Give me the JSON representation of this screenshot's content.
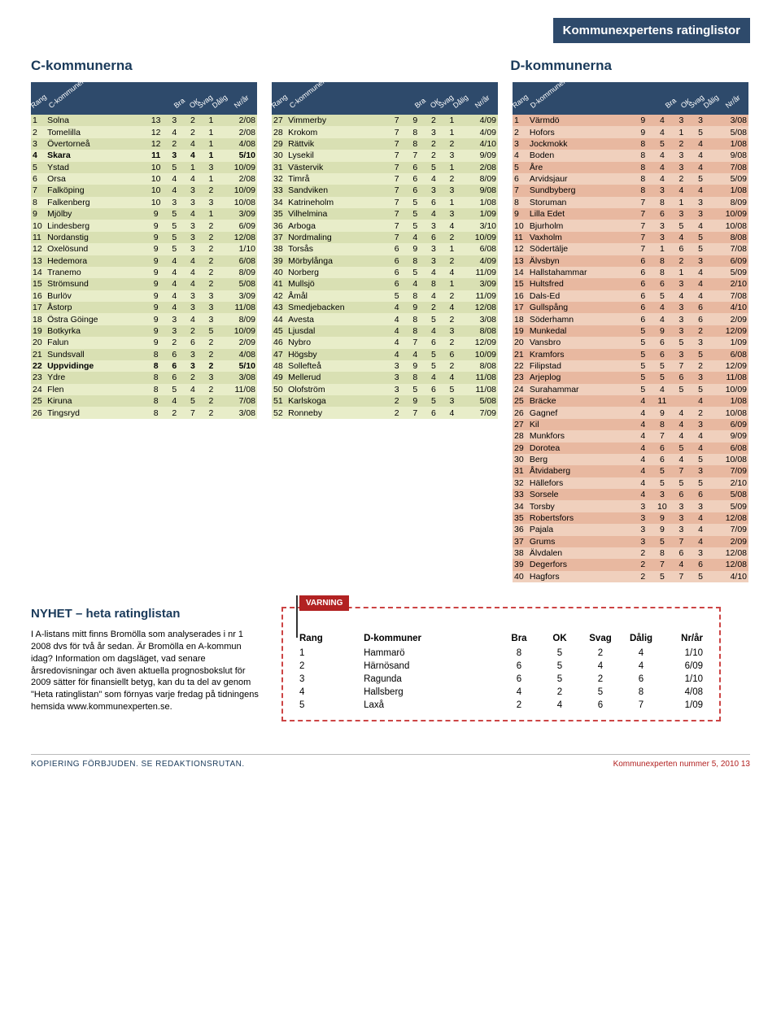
{
  "banner": "Kommunexpertens ratinglistor",
  "section_c_title": "C-kommunerna",
  "section_d_title": "D-kommunerna",
  "headers": {
    "rang": "Rang",
    "bra": "Bra",
    "ok": "OK",
    "svag": "Svag",
    "dalig": "Dålig",
    "nrar": "Nr/år",
    "name_c": "C-kommuner",
    "name_d": "D-kommuner"
  },
  "c_part1": [
    {
      "r": "1",
      "n": "Solna",
      "v": [
        "13",
        "3",
        "2",
        "1"
      ],
      "t": "2/08"
    },
    {
      "r": "2",
      "n": "Tomelilla",
      "v": [
        "12",
        "4",
        "2",
        "1"
      ],
      "t": "2/08"
    },
    {
      "r": "3",
      "n": "Övertorneå",
      "v": [
        "12",
        "2",
        "4",
        "1"
      ],
      "t": "4/08"
    },
    {
      "r": "4",
      "n": "Skara",
      "v": [
        "11",
        "3",
        "4",
        "1"
      ],
      "t": "5/10",
      "b": true
    },
    {
      "r": "5",
      "n": "Ystad",
      "v": [
        "10",
        "5",
        "1",
        "3"
      ],
      "t": "10/09"
    },
    {
      "r": "6",
      "n": "Orsa",
      "v": [
        "10",
        "4",
        "4",
        "1"
      ],
      "t": "2/08"
    },
    {
      "r": "7",
      "n": "Falköping",
      "v": [
        "10",
        "4",
        "3",
        "2"
      ],
      "t": "10/09"
    },
    {
      "r": "8",
      "n": "Falkenberg",
      "v": [
        "10",
        "3",
        "3",
        "3"
      ],
      "t": "10/08"
    },
    {
      "r": "9",
      "n": "Mjölby",
      "v": [
        "9",
        "5",
        "4",
        "1"
      ],
      "t": "3/09"
    },
    {
      "r": "10",
      "n": "Lindesberg",
      "v": [
        "9",
        "5",
        "3",
        "2"
      ],
      "t": "6/09"
    },
    {
      "r": "11",
      "n": "Nordanstig",
      "v": [
        "9",
        "5",
        "3",
        "2"
      ],
      "t": "12/08"
    },
    {
      "r": "12",
      "n": "Oxelösund",
      "v": [
        "9",
        "5",
        "3",
        "2"
      ],
      "t": "1/10"
    },
    {
      "r": "13",
      "n": "Hedemora",
      "v": [
        "9",
        "4",
        "4",
        "2"
      ],
      "t": "6/08"
    },
    {
      "r": "14",
      "n": "Tranemo",
      "v": [
        "9",
        "4",
        "4",
        "2"
      ],
      "t": "8/09"
    },
    {
      "r": "15",
      "n": "Strömsund",
      "v": [
        "9",
        "4",
        "4",
        "2"
      ],
      "t": "5/08"
    },
    {
      "r": "16",
      "n": "Burlöv",
      "v": [
        "9",
        "4",
        "3",
        "3"
      ],
      "t": "3/09"
    },
    {
      "r": "17",
      "n": "Åstorp",
      "v": [
        "9",
        "4",
        "3",
        "3"
      ],
      "t": "11/08"
    },
    {
      "r": "18",
      "n": "Östra Göinge",
      "v": [
        "9",
        "3",
        "4",
        "3"
      ],
      "t": "8/09"
    },
    {
      "r": "19",
      "n": "Botkyrka",
      "v": [
        "9",
        "3",
        "2",
        "5"
      ],
      "t": "10/09"
    },
    {
      "r": "20",
      "n": "Falun",
      "v": [
        "9",
        "2",
        "6",
        "2"
      ],
      "t": "2/09"
    },
    {
      "r": "21",
      "n": "Sundsvall",
      "v": [
        "8",
        "6",
        "3",
        "2"
      ],
      "t": "4/08"
    },
    {
      "r": "22",
      "n": "Uppvidinge",
      "v": [
        "8",
        "6",
        "3",
        "2"
      ],
      "t": "5/10",
      "b": true
    },
    {
      "r": "23",
      "n": "Ydre",
      "v": [
        "8",
        "6",
        "2",
        "3"
      ],
      "t": "3/08"
    },
    {
      "r": "24",
      "n": "Flen",
      "v": [
        "8",
        "5",
        "4",
        "2"
      ],
      "t": "11/08"
    },
    {
      "r": "25",
      "n": "Kiruna",
      "v": [
        "8",
        "4",
        "5",
        "2"
      ],
      "t": "7/08"
    },
    {
      "r": "26",
      "n": "Tingsryd",
      "v": [
        "8",
        "2",
        "7",
        "2"
      ],
      "t": "3/08"
    }
  ],
  "c_part2": [
    {
      "r": "27",
      "n": "Vimmerby",
      "v": [
        "7",
        "9",
        "2",
        "1"
      ],
      "t": "4/09"
    },
    {
      "r": "28",
      "n": "Krokom",
      "v": [
        "7",
        "8",
        "3",
        "1"
      ],
      "t": "4/09"
    },
    {
      "r": "29",
      "n": "Rättvik",
      "v": [
        "7",
        "8",
        "2",
        "2"
      ],
      "t": "4/10"
    },
    {
      "r": "30",
      "n": "Lysekil",
      "v": [
        "7",
        "7",
        "2",
        "3"
      ],
      "t": "9/09"
    },
    {
      "r": "31",
      "n": "Västervik",
      "v": [
        "7",
        "6",
        "5",
        "1"
      ],
      "t": "2/08"
    },
    {
      "r": "32",
      "n": "Timrå",
      "v": [
        "7",
        "6",
        "4",
        "2"
      ],
      "t": "8/09"
    },
    {
      "r": "33",
      "n": "Sandviken",
      "v": [
        "7",
        "6",
        "3",
        "3"
      ],
      "t": "9/08"
    },
    {
      "r": "34",
      "n": "Katrineholm",
      "v": [
        "7",
        "5",
        "6",
        "1"
      ],
      "t": "1/08"
    },
    {
      "r": "35",
      "n": "Vilhelmina",
      "v": [
        "7",
        "5",
        "4",
        "3"
      ],
      "t": "1/09"
    },
    {
      "r": "36",
      "n": "Arboga",
      "v": [
        "7",
        "5",
        "3",
        "4"
      ],
      "t": "3/10"
    },
    {
      "r": "37",
      "n": "Nordmaling",
      "v": [
        "7",
        "4",
        "6",
        "2"
      ],
      "t": "10/09"
    },
    {
      "r": "38",
      "n": "Torsås",
      "v": [
        "6",
        "9",
        "3",
        "1"
      ],
      "t": "6/08"
    },
    {
      "r": "39",
      "n": "Mörbylånga",
      "v": [
        "6",
        "8",
        "3",
        "2"
      ],
      "t": "4/09"
    },
    {
      "r": "40",
      "n": "Norberg",
      "v": [
        "6",
        "5",
        "4",
        "4"
      ],
      "t": "11/09"
    },
    {
      "r": "41",
      "n": "Mullsjö",
      "v": [
        "6",
        "4",
        "8",
        "1"
      ],
      "t": "3/09"
    },
    {
      "r": "42",
      "n": "Åmål",
      "v": [
        "5",
        "8",
        "4",
        "2"
      ],
      "t": "11/09"
    },
    {
      "r": "43",
      "n": "Smedjebacken",
      "v": [
        "4",
        "9",
        "2",
        "4"
      ],
      "t": "12/08"
    },
    {
      "r": "44",
      "n": "Avesta",
      "v": [
        "4",
        "8",
        "5",
        "2"
      ],
      "t": "3/08"
    },
    {
      "r": "45",
      "n": "Ljusdal",
      "v": [
        "4",
        "8",
        "4",
        "3"
      ],
      "t": "8/08"
    },
    {
      "r": "46",
      "n": "Nybro",
      "v": [
        "4",
        "7",
        "6",
        "2"
      ],
      "t": "12/09"
    },
    {
      "r": "47",
      "n": "Högsby",
      "v": [
        "4",
        "4",
        "5",
        "6"
      ],
      "t": "10/09"
    },
    {
      "r": "48",
      "n": "Sollefteå",
      "v": [
        "3",
        "9",
        "5",
        "2"
      ],
      "t": "8/08"
    },
    {
      "r": "49",
      "n": "Mellerud",
      "v": [
        "3",
        "8",
        "4",
        "4"
      ],
      "t": "11/08"
    },
    {
      "r": "50",
      "n": "Olofström",
      "v": [
        "3",
        "5",
        "6",
        "5"
      ],
      "t": "11/08"
    },
    {
      "r": "51",
      "n": "Karlskoga",
      "v": [
        "2",
        "9",
        "5",
        "3"
      ],
      "t": "5/08"
    },
    {
      "r": "52",
      "n": "Ronneby",
      "v": [
        "2",
        "7",
        "6",
        "4"
      ],
      "t": "7/09"
    }
  ],
  "d_rows": [
    {
      "r": "1",
      "n": "Värmdö",
      "v": [
        "9",
        "4",
        "3",
        "3"
      ],
      "t": "3/08"
    },
    {
      "r": "2",
      "n": "Hofors",
      "v": [
        "9",
        "4",
        "1",
        "5"
      ],
      "t": "5/08"
    },
    {
      "r": "3",
      "n": "Jockmokk",
      "v": [
        "8",
        "5",
        "2",
        "4"
      ],
      "t": "1/08"
    },
    {
      "r": "4",
      "n": "Boden",
      "v": [
        "8",
        "4",
        "3",
        "4"
      ],
      "t": "9/08"
    },
    {
      "r": "5",
      "n": "Åre",
      "v": [
        "8",
        "4",
        "3",
        "4"
      ],
      "t": "7/08"
    },
    {
      "r": "6",
      "n": "Arvidsjaur",
      "v": [
        "8",
        "4",
        "2",
        "5"
      ],
      "t": "5/09"
    },
    {
      "r": "7",
      "n": "Sundbyberg",
      "v": [
        "8",
        "3",
        "4",
        "4"
      ],
      "t": "1/08"
    },
    {
      "r": "8",
      "n": "Storuman",
      "v": [
        "7",
        "8",
        "1",
        "3"
      ],
      "t": "8/09"
    },
    {
      "r": "9",
      "n": "Lilla Edet",
      "v": [
        "7",
        "6",
        "3",
        "3"
      ],
      "t": "10/09"
    },
    {
      "r": "10",
      "n": "Bjurholm",
      "v": [
        "7",
        "3",
        "5",
        "4"
      ],
      "t": "10/08"
    },
    {
      "r": "11",
      "n": "Vaxholm",
      "v": [
        "7",
        "3",
        "4",
        "5"
      ],
      "t": "8/08"
    },
    {
      "r": "12",
      "n": "Södertälje",
      "v": [
        "7",
        "1",
        "6",
        "5"
      ],
      "t": "7/08"
    },
    {
      "r": "13",
      "n": "Älvsbyn",
      "v": [
        "6",
        "8",
        "2",
        "3"
      ],
      "t": "6/09"
    },
    {
      "r": "14",
      "n": "Hallstahammar",
      "v": [
        "6",
        "8",
        "1",
        "4"
      ],
      "t": "5/09"
    },
    {
      "r": "15",
      "n": "Hultsfred",
      "v": [
        "6",
        "6",
        "3",
        "4"
      ],
      "t": "2/10"
    },
    {
      "r": "16",
      "n": "Dals-Ed",
      "v": [
        "6",
        "5",
        "4",
        "4"
      ],
      "t": "7/08"
    },
    {
      "r": "17",
      "n": "Gullspång",
      "v": [
        "6",
        "4",
        "3",
        "6"
      ],
      "t": "4/10"
    },
    {
      "r": "18",
      "n": "Söderhamn",
      "v": [
        "6",
        "4",
        "3",
        "6"
      ],
      "t": "2/09"
    },
    {
      "r": "19",
      "n": "Munkedal",
      "v": [
        "5",
        "9",
        "3",
        "2"
      ],
      "t": "12/09"
    },
    {
      "r": "20",
      "n": "Vansbro",
      "v": [
        "5",
        "6",
        "5",
        "3"
      ],
      "t": "1/09"
    },
    {
      "r": "21",
      "n": "Kramfors",
      "v": [
        "5",
        "6",
        "3",
        "5"
      ],
      "t": "6/08"
    },
    {
      "r": "22",
      "n": "Filipstad",
      "v": [
        "5",
        "5",
        "7",
        "2"
      ],
      "t": "12/09"
    },
    {
      "r": "23",
      "n": "Arjeplog",
      "v": [
        "5",
        "5",
        "6",
        "3"
      ],
      "t": "11/08"
    },
    {
      "r": "24",
      "n": "Surahammar",
      "v": [
        "5",
        "4",
        "5",
        "5"
      ],
      "t": "10/09"
    },
    {
      "r": "25",
      "n": "Bräcke",
      "v": [
        "4",
        "11",
        "",
        "4"
      ],
      "t": "1/08"
    },
    {
      "r": "26",
      "n": "Gagnef",
      "v": [
        "4",
        "9",
        "4",
        "2"
      ],
      "t": "10/08"
    },
    {
      "r": "27",
      "n": "Kil",
      "v": [
        "4",
        "8",
        "4",
        "3"
      ],
      "t": "6/09"
    },
    {
      "r": "28",
      "n": "Munkfors",
      "v": [
        "4",
        "7",
        "4",
        "4"
      ],
      "t": "9/09"
    },
    {
      "r": "29",
      "n": "Dorotea",
      "v": [
        "4",
        "6",
        "5",
        "4"
      ],
      "t": "6/08"
    },
    {
      "r": "30",
      "n": "Berg",
      "v": [
        "4",
        "6",
        "4",
        "5"
      ],
      "t": "10/08"
    },
    {
      "r": "31",
      "n": "Åtvidaberg",
      "v": [
        "4",
        "5",
        "7",
        "3"
      ],
      "t": "7/09"
    },
    {
      "r": "32",
      "n": "Hällefors",
      "v": [
        "4",
        "5",
        "5",
        "5"
      ],
      "t": "2/10"
    },
    {
      "r": "33",
      "n": "Sorsele",
      "v": [
        "4",
        "3",
        "6",
        "6"
      ],
      "t": "5/08"
    },
    {
      "r": "34",
      "n": "Torsby",
      "v": [
        "3",
        "10",
        "3",
        "3"
      ],
      "t": "5/09"
    },
    {
      "r": "35",
      "n": "Robertsfors",
      "v": [
        "3",
        "9",
        "3",
        "4"
      ],
      "t": "12/08"
    },
    {
      "r": "36",
      "n": "Pajala",
      "v": [
        "3",
        "9",
        "3",
        "4"
      ],
      "t": "7/09"
    },
    {
      "r": "37",
      "n": "Grums",
      "v": [
        "3",
        "5",
        "7",
        "4"
      ],
      "t": "2/09"
    },
    {
      "r": "38",
      "n": "Älvdalen",
      "v": [
        "2",
        "8",
        "6",
        "3"
      ],
      "t": "12/08"
    },
    {
      "r": "39",
      "n": "Degerfors",
      "v": [
        "2",
        "7",
        "4",
        "6"
      ],
      "t": "12/08"
    },
    {
      "r": "40",
      "n": "Hagfors",
      "v": [
        "2",
        "5",
        "7",
        "5"
      ],
      "t": "4/10"
    }
  ],
  "nyhet": {
    "title": "NYHET – heta ratinglistan",
    "body": "I A-listans mitt finns Bromölla som analyserades i nr 1 2008 dvs för två år sedan. Är Bromölla en A-kommun idag? Information om dagsläget, vad senare årsredovisningar och även aktuella prognosbokslut för 2009 sätter för finansiellt betyg, kan du ta del av genom \"Heta ratinglistan\" som förnyas varje fredag på tidningens hemsida www.kommunexperten.se."
  },
  "varning": {
    "flag": "VARNING",
    "headers": {
      "rang": "Rang",
      "name": "D-kommuner",
      "bra": "Bra",
      "ok": "OK",
      "svag": "Svag",
      "dalig": "Dålig",
      "nrar": "Nr/år"
    },
    "rows": [
      {
        "r": "1",
        "n": "Hammarö",
        "v": [
          "8",
          "5",
          "2",
          "4"
        ],
        "t": "1/10"
      },
      {
        "r": "2",
        "n": "Härnösand",
        "v": [
          "6",
          "5",
          "4",
          "4"
        ],
        "t": "6/09"
      },
      {
        "r": "3",
        "n": "Ragunda",
        "v": [
          "6",
          "5",
          "2",
          "6"
        ],
        "t": "1/10"
      },
      {
        "r": "4",
        "n": "Hallsberg",
        "v": [
          "4",
          "2",
          "5",
          "8"
        ],
        "t": "4/08"
      },
      {
        "r": "5",
        "n": "Laxå",
        "v": [
          "2",
          "4",
          "6",
          "7"
        ],
        "t": "1/09"
      }
    ]
  },
  "footer": {
    "left": "KOPIERING FÖRBJUDEN. SE REDAKTIONSRUTAN.",
    "right": "Kommunexperten nummer 5, 2010   13"
  },
  "colors": {
    "banner_bg": "#2e4a6b",
    "c_even": "#d9e0b3",
    "c_odd": "#e8edc9",
    "d_even": "#e8b8a0",
    "d_odd": "#f0d0bd",
    "accent": "#b22222"
  }
}
